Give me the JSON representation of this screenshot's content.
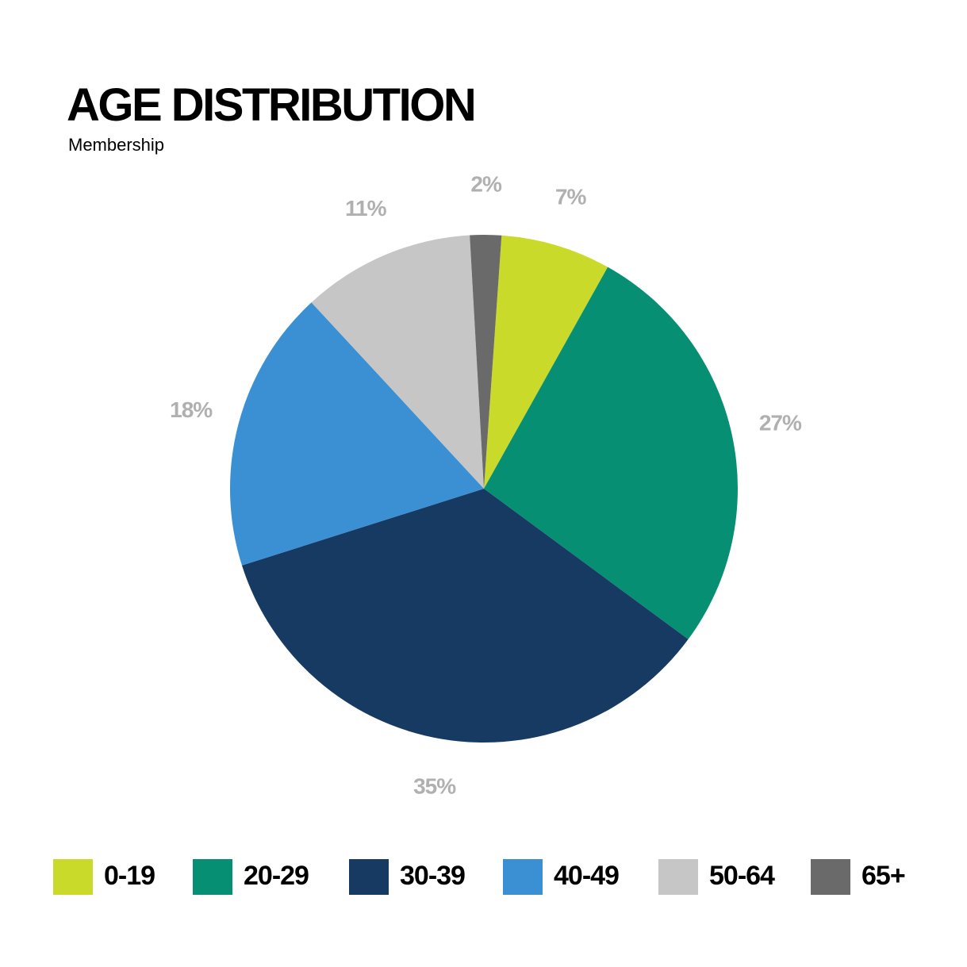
{
  "chart_data": {
    "type": "pie",
    "title": "AGE DISTRIBUTION",
    "subtitle": "Membership",
    "categories": [
      "0-19",
      "20-29",
      "30-39",
      "40-49",
      "50-64",
      "65+"
    ],
    "values": [
      7,
      27,
      35,
      18,
      11,
      2
    ],
    "value_labels": [
      "7%",
      "27%",
      "35%",
      "18%",
      "11%",
      "2%"
    ],
    "colors": [
      "#c9da2b",
      "#078f74",
      "#163a61",
      "#3a90d3",
      "#c6c6c6",
      "#6a6a6a"
    ],
    "legend": "bottom"
  }
}
